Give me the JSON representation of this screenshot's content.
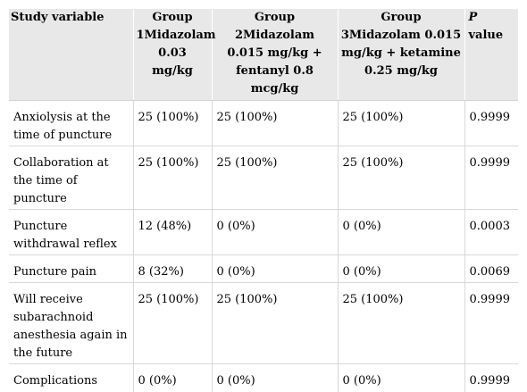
{
  "header": {
    "col1": "Study variable",
    "col2": "Group 1Midazolam 0.03 mg/kg",
    "col3": "Group 2Midazolam 0.015 mg/kg + fentanyl 0.8 mcg/kg",
    "col4": "Group 3Midazolam 0.015 mg/kg + ketamine 0.25 mg/kg",
    "col5_italic": "P",
    "col5_rest": " value"
  },
  "rows": [
    {
      "variable": "Anxiolysis at the time of puncture",
      "g1": "25 (100%)",
      "g2": "25 (100%)",
      "g3": "25 (100%)",
      "p": "0.9999"
    },
    {
      "variable": "Collaboration at the time of puncture",
      "g1": "25 (100%)",
      "g2": "25 (100%)",
      "g3": "25 (100%)",
      "p": "0.9999"
    },
    {
      "variable": "Puncture withdrawal reflex",
      "g1": "12 (48%)",
      "g2": "0 (0%)",
      "g3": "0 (0%)",
      "p": "0.0003"
    },
    {
      "variable": "Puncture pain",
      "g1": "8 (32%)",
      "g2": "0 (0%)",
      "g3": "0 (0%)",
      "p": "0.0069"
    },
    {
      "variable": "Will receive subarachnoid anesthesia again in the future",
      "g1": "25 (100%)",
      "g2": "25 (100%)",
      "g3": "25 (100%)",
      "p": "0.9999"
    },
    {
      "variable": "Complications",
      "g1": "0 (0%)",
      "g2": "0 (0%)",
      "g3": "0 (0%)",
      "p": "0.9999"
    }
  ]
}
